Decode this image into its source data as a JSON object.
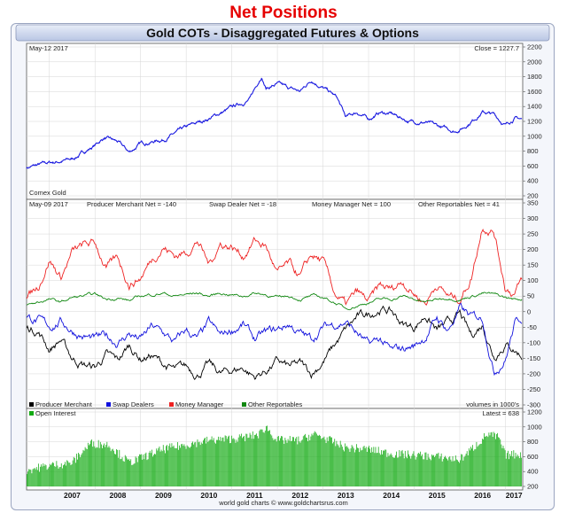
{
  "page": {
    "title": "Net Positions"
  },
  "chart_data": [
    {
      "id": "gold-price",
      "type": "line",
      "title": "Gold COTs - Disaggregated Futures & Options",
      "date_label": "May-12  2017",
      "close_label": "Close = 1227.7",
      "series_label": "Comex Gold",
      "ylim": [
        200,
        2200
      ],
      "yticks": [
        200,
        400,
        600,
        800,
        1000,
        1200,
        1400,
        1600,
        1800,
        2000,
        2200
      ],
      "x": [
        2006.5,
        2007.0,
        2007.5,
        2008.0,
        2008.2,
        2008.5,
        2008.75,
        2009.0,
        2009.5,
        2010.0,
        2010.5,
        2011.0,
        2011.4,
        2011.65,
        2011.75,
        2012.0,
        2012.2,
        2012.5,
        2012.75,
        2012.95,
        2013.3,
        2013.5,
        2013.75,
        2014.0,
        2014.25,
        2014.5,
        2014.9,
        2015.25,
        2015.5,
        2015.9,
        2016.1,
        2016.5,
        2016.75,
        2017.0,
        2017.2,
        2017.36
      ],
      "y": [
        580,
        640,
        690,
        880,
        980,
        920,
        780,
        900,
        960,
        1110,
        1240,
        1380,
        1500,
        1820,
        1650,
        1700,
        1650,
        1600,
        1760,
        1680,
        1520,
        1250,
        1320,
        1230,
        1320,
        1300,
        1200,
        1190,
        1130,
        1070,
        1130,
        1330,
        1290,
        1150,
        1250,
        1228
      ]
    },
    {
      "id": "net-positions",
      "type": "line",
      "date_label": "May-09  2017",
      "ylim": [
        -300,
        350
      ],
      "yticks": [
        -300,
        -250,
        -200,
        -150,
        -100,
        -50,
        0,
        50,
        100,
        150,
        200,
        250,
        300,
        350
      ],
      "units_label": "volumes in 1000's",
      "header_labels": [
        "Producer Merchant Net = -140",
        "Swap Dealer Net = -18",
        "Money Manager Net = 100",
        "Other Reportables Net = 41"
      ],
      "x": [
        2006.5,
        2006.75,
        2007.0,
        2007.25,
        2007.5,
        2007.75,
        2008.0,
        2008.25,
        2008.5,
        2008.75,
        2009.0,
        2009.25,
        2009.5,
        2009.75,
        2010.0,
        2010.25,
        2010.5,
        2010.75,
        2011.0,
        2011.25,
        2011.5,
        2011.75,
        2012.0,
        2012.25,
        2012.5,
        2012.75,
        2013.0,
        2013.25,
        2013.5,
        2013.75,
        2014.0,
        2014.25,
        2014.5,
        2014.75,
        2015.0,
        2015.25,
        2015.5,
        2015.75,
        2016.0,
        2016.25,
        2016.5,
        2016.75,
        2017.0,
        2017.2,
        2017.36
      ],
      "series": [
        {
          "name": "Producer Merchant",
          "color": "#000000",
          "values": [
            -50,
            -60,
            -120,
            -90,
            -150,
            -170,
            -180,
            -140,
            -160,
            -110,
            -150,
            -140,
            -170,
            -190,
            -180,
            -200,
            -170,
            -200,
            -190,
            -180,
            -210,
            -190,
            -160,
            -180,
            -170,
            -200,
            -160,
            -110,
            -60,
            -20,
            -10,
            10,
            0,
            -40,
            -50,
            -10,
            -60,
            -40,
            -10,
            -80,
            -40,
            -140,
            -100,
            -120,
            -140
          ]
        },
        {
          "name": "Swap Dealers",
          "color": "#1010dd",
          "values": [
            -20,
            -30,
            -50,
            -30,
            -60,
            -80,
            -90,
            -80,
            -100,
            -70,
            -90,
            -50,
            -70,
            -100,
            -60,
            -90,
            -40,
            -80,
            -60,
            -40,
            -90,
            -70,
            -60,
            -40,
            -70,
            -90,
            -50,
            -40,
            -30,
            -70,
            -110,
            -90,
            -130,
            -120,
            -110,
            -80,
            -20,
            -60,
            10,
            -20,
            -20,
            -190,
            -150,
            -40,
            -18
          ]
        },
        {
          "name": "Money Manager",
          "color": "#ee2222",
          "values": [
            40,
            80,
            170,
            110,
            190,
            210,
            220,
            140,
            170,
            90,
            110,
            170,
            210,
            180,
            190,
            230,
            150,
            220,
            210,
            180,
            230,
            210,
            120,
            150,
            110,
            180,
            160,
            60,
            20,
            60,
            30,
            80,
            70,
            100,
            60,
            30,
            90,
            50,
            40,
            110,
            280,
            260,
            80,
            60,
            100
          ]
        },
        {
          "name": "Other Reportables",
          "color": "#118811",
          "values": [
            20,
            30,
            40,
            30,
            45,
            50,
            55,
            40,
            45,
            35,
            50,
            55,
            60,
            50,
            55,
            60,
            50,
            60,
            55,
            50,
            60,
            55,
            45,
            50,
            40,
            50,
            45,
            30,
            10,
            20,
            30,
            40,
            40,
            50,
            40,
            30,
            40,
            45,
            40,
            50,
            60,
            55,
            45,
            40,
            41
          ]
        }
      ]
    },
    {
      "id": "open-interest",
      "type": "bar",
      "label": "Open Interest",
      "latest_label": "Latest = 638",
      "ylim": [
        200,
        1200
      ],
      "yticks": [
        200,
        400,
        600,
        800,
        1000,
        1200
      ],
      "x": [
        2006.5,
        2007.0,
        2007.5,
        2007.9,
        2008.3,
        2008.75,
        2009.0,
        2009.5,
        2010.0,
        2010.5,
        2011.0,
        2011.3,
        2011.6,
        2011.75,
        2012.0,
        2012.5,
        2012.8,
        2013.0,
        2013.5,
        2014.0,
        2014.5,
        2015.0,
        2015.5,
        2016.0,
        2016.3,
        2016.6,
        2016.85,
        2017.0,
        2017.36
      ],
      "values": [
        420,
        480,
        520,
        780,
        760,
        520,
        580,
        700,
        760,
        820,
        840,
        860,
        900,
        1000,
        820,
        820,
        900,
        860,
        720,
        700,
        640,
        620,
        600,
        560,
        720,
        900,
        860,
        620,
        638
      ],
      "color": "#11aa11"
    }
  ],
  "legend": [
    {
      "name": "Producer Merchant",
      "color": "#000000"
    },
    {
      "name": "Swap Dealers",
      "color": "#1010dd"
    },
    {
      "name": "Money Manager",
      "color": "#ee2222"
    },
    {
      "name": "Other Reportables",
      "color": "#118811"
    }
  ],
  "x_axis": {
    "years": [
      "2007",
      "2008",
      "2009",
      "2010",
      "2011",
      "2012",
      "2013",
      "2014",
      "2015",
      "2016",
      "2017"
    ],
    "year_values": [
      2007,
      2008,
      2009,
      2010,
      2011,
      2012,
      2013,
      2014,
      2015,
      2016,
      2017
    ],
    "xlim": [
      2006.5,
      2017.38
    ]
  },
  "footer": {
    "credit": "world gold charts © www.goldchartsrus.com"
  }
}
